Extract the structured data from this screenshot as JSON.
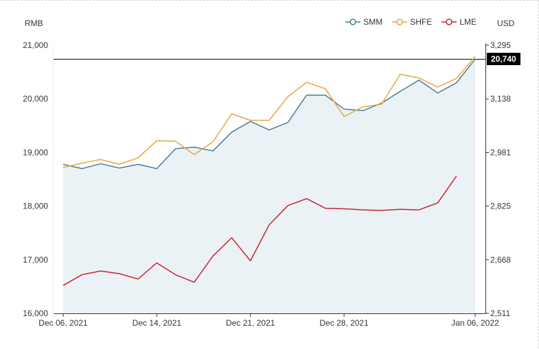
{
  "chart_data": {
    "type": "line",
    "left_unit": "RMB",
    "right_unit": "USD",
    "legend_position": "top-right",
    "grid": false,
    "x_labels": [
      "Dec 06, 2021",
      "Dec 14, 2021",
      "Dec 21, 2021",
      "Dec 28, 2021",
      "Jan 06, 2022"
    ],
    "x_label_indices": [
      0,
      5,
      10,
      15,
      22
    ],
    "x": [
      "2021-12-06",
      "2021-12-07",
      "2021-12-08",
      "2021-12-09",
      "2021-12-10",
      "2021-12-13",
      "2021-12-14",
      "2021-12-15",
      "2021-12-16",
      "2021-12-17",
      "2021-12-20",
      "2021-12-21",
      "2021-12-22",
      "2021-12-23",
      "2021-12-24",
      "2021-12-27",
      "2021-12-28",
      "2021-12-29",
      "2021-12-30",
      "2021-12-31",
      "2022-01-04",
      "2022-01-05",
      "2022-01-06"
    ],
    "left_axis": {
      "ylim": [
        16000,
        21000
      ],
      "ticks": [
        "16,000",
        "17,000",
        "18,000",
        "19,000",
        "20,000",
        "21,000"
      ]
    },
    "right_axis": {
      "ylim": [
        2511,
        3295
      ],
      "ticks": [
        "2,511",
        "2,668",
        "2,825",
        "2,981",
        "3,138",
        "3,295"
      ]
    },
    "current_value_label": "20,740",
    "current_value": 20740,
    "series": [
      {
        "name": "SMM",
        "axis": "left",
        "color": "#4a7d96",
        "area": true,
        "area_color": "#eaf2f6",
        "values": [
          18780,
          18700,
          18790,
          18710,
          18780,
          18700,
          19070,
          19100,
          19030,
          19380,
          19580,
          19420,
          19560,
          20070,
          20070,
          19810,
          19780,
          19920,
          20140,
          20350,
          20110,
          20300,
          20740
        ]
      },
      {
        "name": "SHFE",
        "axis": "left",
        "color": "#e8a33a",
        "area": false,
        "values": [
          18720,
          18800,
          18870,
          18780,
          18900,
          19220,
          19210,
          18960,
          19200,
          19720,
          19600,
          19600,
          20040,
          20310,
          20190,
          19670,
          19850,
          19900,
          20460,
          20390,
          20220,
          20380,
          20790
        ]
      },
      {
        "name": "LME",
        "axis": "left",
        "color": "#c8232c",
        "area": false,
        "values": [
          16520,
          16720,
          16790,
          16740,
          16640,
          16940,
          16720,
          16580,
          17070,
          17410,
          16980,
          17650,
          18010,
          18140,
          17960,
          17950,
          17930,
          17920,
          17940,
          17930,
          18060,
          18560,
          null
        ]
      }
    ]
  }
}
